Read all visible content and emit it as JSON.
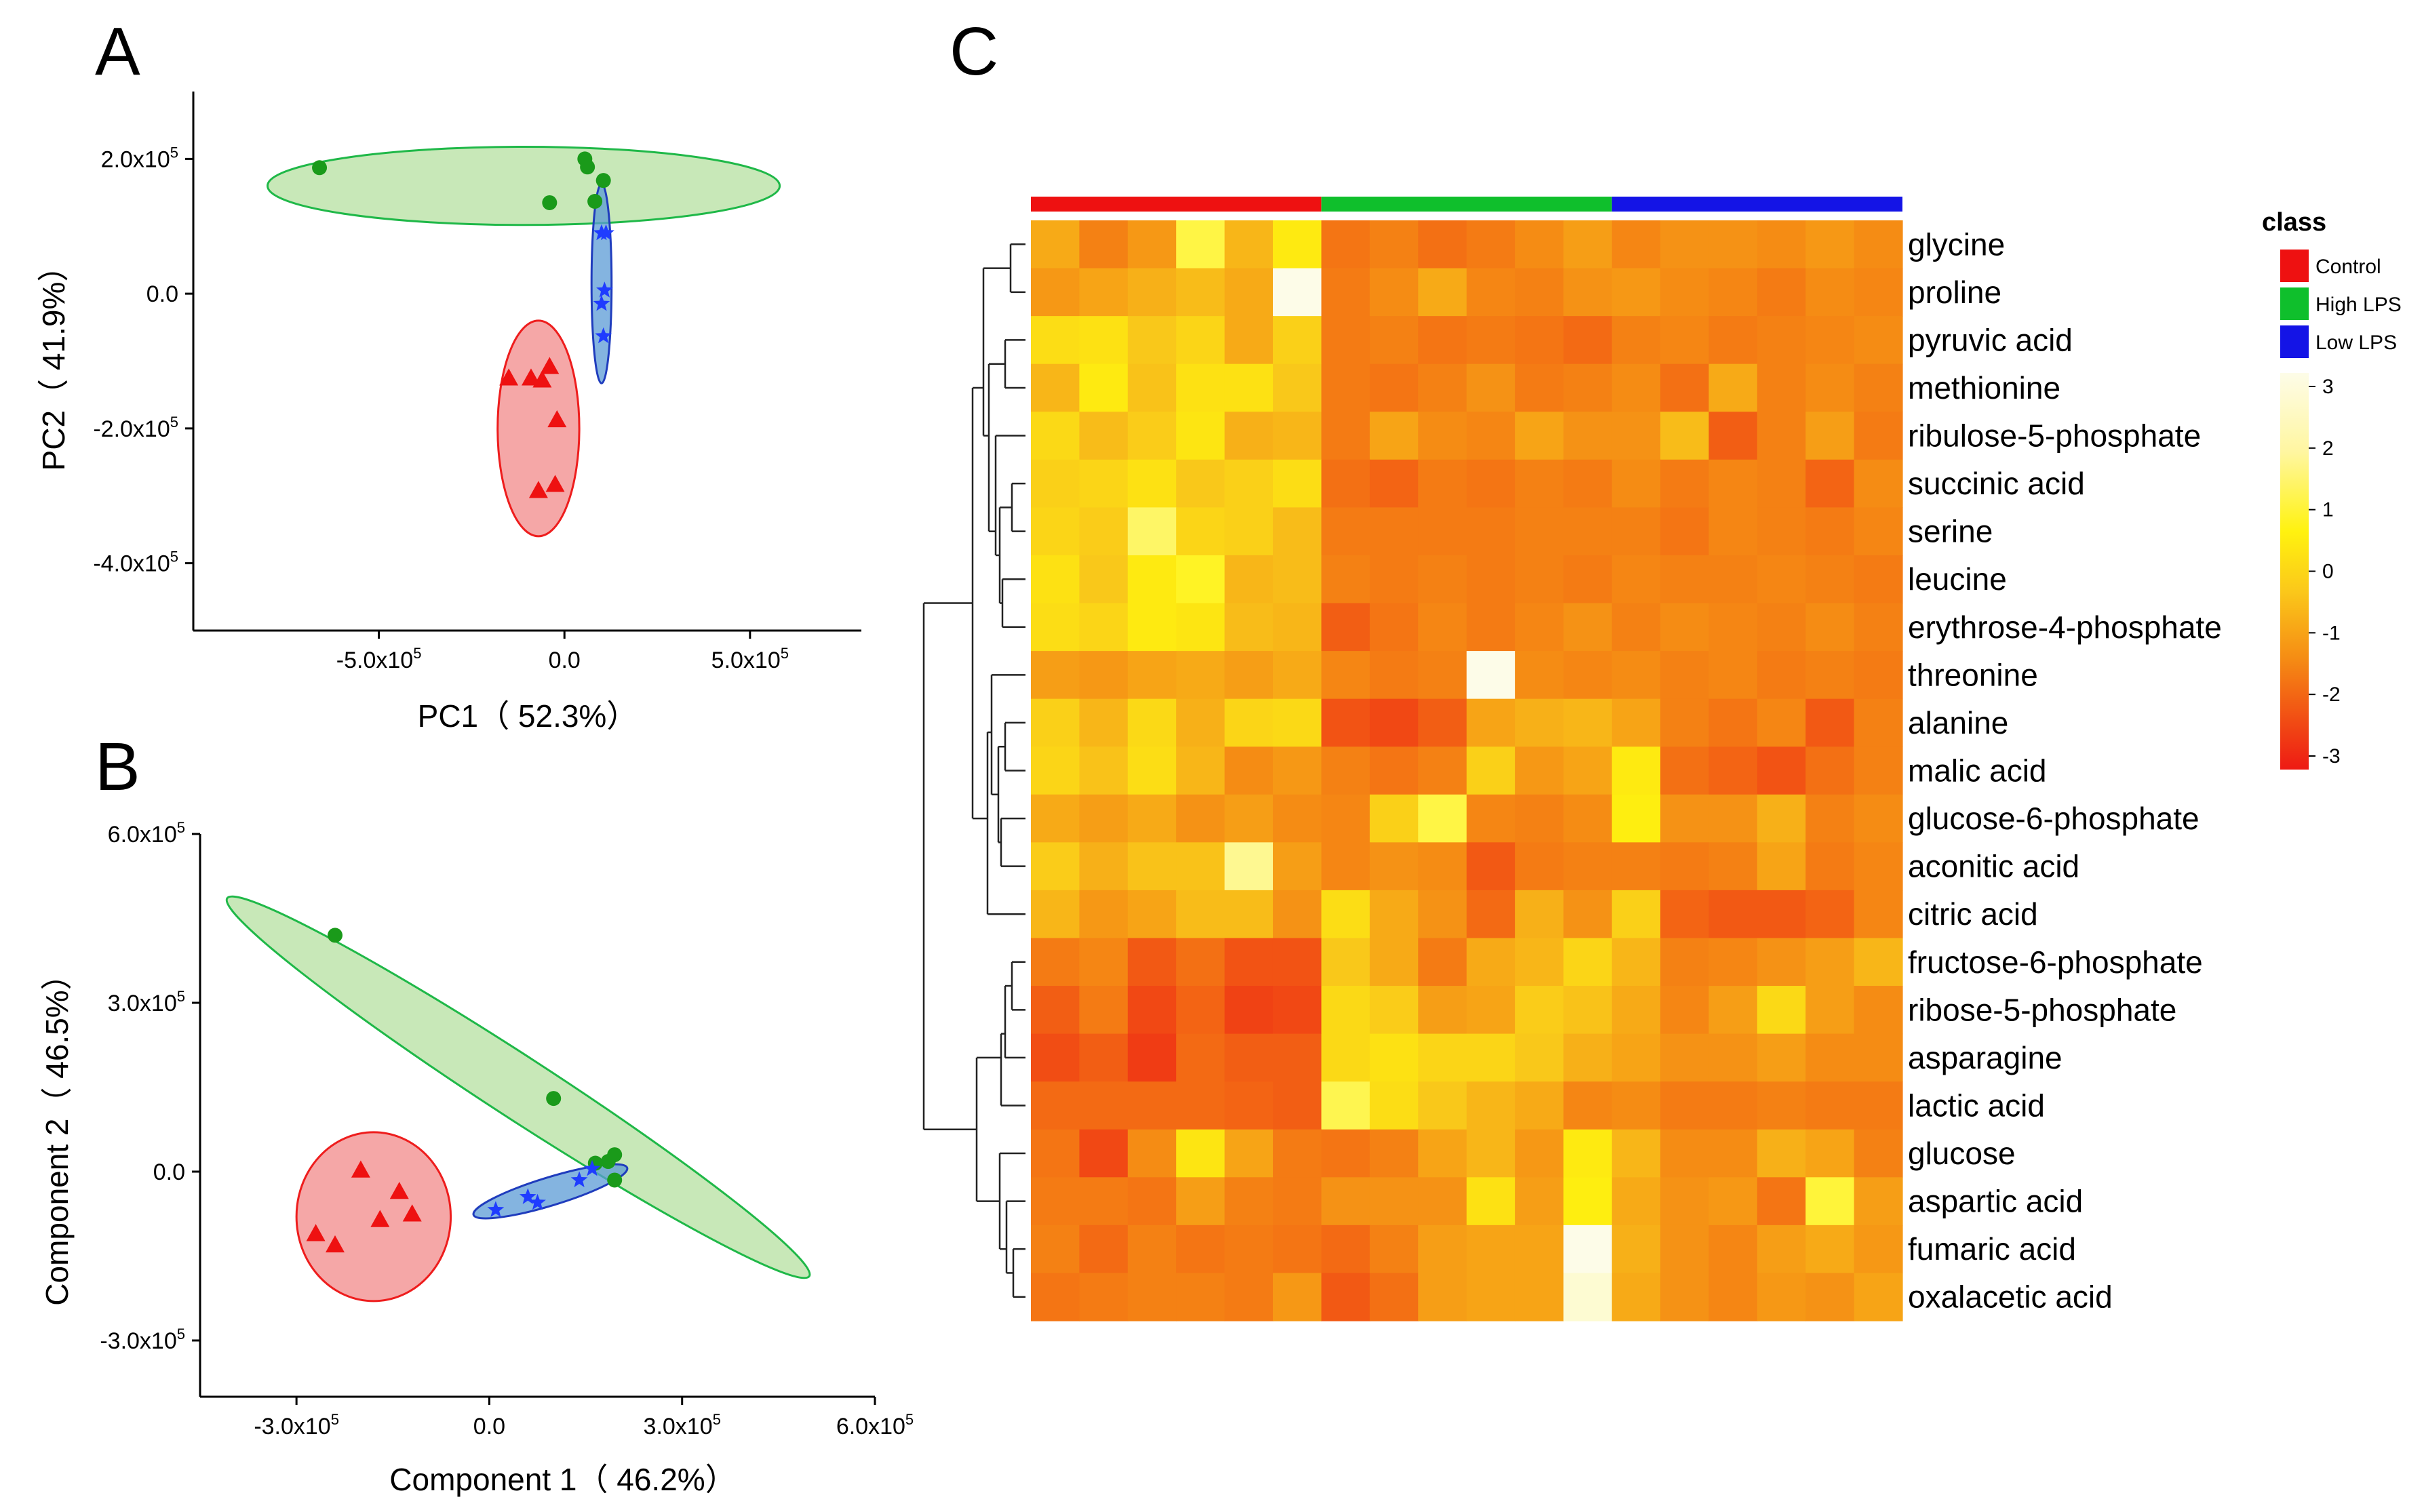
{
  "chart_data": [
    {
      "panel": "A",
      "type": "scatter",
      "xlabel": "PC1（ 52.3%）",
      "ylabel": "PC2（ 41.9%）",
      "xlim": [
        -1000000,
        800000
      ],
      "ylim": [
        -500000,
        300000
      ],
      "xticks": [
        {
          "value": -500000,
          "label": "-5.0x10",
          "exp": "5"
        },
        {
          "value": 0,
          "label": "0.0",
          "exp": ""
        },
        {
          "value": 500000,
          "label": "5.0x10",
          "exp": "5"
        }
      ],
      "yticks": [
        {
          "value": 200000,
          "label": "2.0x10",
          "exp": "5"
        },
        {
          "value": 0,
          "label": "0.0",
          "exp": ""
        },
        {
          "value": -200000,
          "label": "-2.0x10",
          "exp": "5"
        },
        {
          "value": -400000,
          "label": "-4.0x10",
          "exp": "5"
        }
      ],
      "series": [
        {
          "name": "High LPS",
          "marker": "circle",
          "color": "#1a9a1a",
          "fill": "#b6e0a0",
          "stroke": "#1fb848",
          "points": [
            [
              -660000,
              187000
            ],
            [
              55000,
              200000
            ],
            [
              62000,
              188000
            ],
            [
              105000,
              168000
            ],
            [
              82000,
              137000
            ],
            [
              -40000,
              135000
            ]
          ],
          "ellipse": {
            "cx": -110000,
            "cy": 160000,
            "rx": 690000,
            "ry": 58000,
            "angle": 0
          }
        },
        {
          "name": "Low LPS",
          "marker": "star",
          "color": "#1f3cff",
          "fill": "#5b9bd5",
          "stroke": "#1f3cbd",
          "points": [
            [
              100000,
              90000
            ],
            [
              108000,
              5000
            ],
            [
              100000,
              -15000
            ],
            [
              105000,
              -63000
            ],
            [
              112000,
              90000
            ]
          ],
          "ellipse": {
            "cx": 100000,
            "cy": 15000,
            "rx": 27000,
            "ry": 148000,
            "angle": 0
          }
        },
        {
          "name": "Control",
          "marker": "triangle",
          "color": "#ee1111",
          "fill": "#f28a8a",
          "stroke": "#ee1d1d",
          "points": [
            [
              -150000,
              -125000
            ],
            [
              -90000,
              -125000
            ],
            [
              -40000,
              -108000
            ],
            [
              -60000,
              -128000
            ],
            [
              -20000,
              -187000
            ],
            [
              -70000,
              -292000
            ],
            [
              -25000,
              -283000
            ]
          ],
          "ellipse": {
            "cx": -70000,
            "cy": -200000,
            "rx": 110000,
            "ry": 160000,
            "angle": 0
          }
        }
      ]
    },
    {
      "panel": "B",
      "type": "scatter",
      "xlabel": "Component 1（ 46.2%）",
      "ylabel": "Component 2（ 46.5%）",
      "xlim": [
        -450000,
        600000
      ],
      "ylim": [
        -400000,
        600000
      ],
      "xticks": [
        {
          "value": -300000,
          "label": "-3.0x10",
          "exp": "5"
        },
        {
          "value": 0,
          "label": "0.0",
          "exp": ""
        },
        {
          "value": 300000,
          "label": "3.0x10",
          "exp": "5"
        },
        {
          "value": 600000,
          "label": "6.0x10",
          "exp": "5"
        }
      ],
      "yticks": [
        {
          "value": 600000,
          "label": "6.0x10",
          "exp": "5"
        },
        {
          "value": 300000,
          "label": "3.0x10",
          "exp": "5"
        },
        {
          "value": 0,
          "label": "0.0",
          "exp": ""
        },
        {
          "value": -300000,
          "label": "-3.0x10",
          "exp": "5"
        }
      ],
      "series": [
        {
          "name": "High LPS",
          "marker": "circle",
          "color": "#1a9a1a",
          "fill": "#b6e0a0",
          "stroke": "#1fb848",
          "points": [
            [
              -240000,
              420000
            ],
            [
              100000,
              130000
            ],
            [
              165000,
              15000
            ],
            [
              185000,
              18000
            ],
            [
              195000,
              30000
            ],
            [
              195000,
              -15000
            ]
          ],
          "ellipse": {
            "cx": 45000,
            "cy": 150000,
            "rx": 540000,
            "ry": 55000,
            "angle": 33
          }
        },
        {
          "name": "Low LPS",
          "marker": "star",
          "color": "#1f3cff",
          "fill": "#5b9bd5",
          "stroke": "#1f3cbd",
          "points": [
            [
              10000,
              -68000
            ],
            [
              60000,
              -45000
            ],
            [
              75000,
              -55000
            ],
            [
              140000,
              -15000
            ],
            [
              160000,
              5000
            ]
          ],
          "ellipse": {
            "cx": 95000,
            "cy": -35000,
            "rx": 125000,
            "ry": 25000,
            "angle": -17
          }
        },
        {
          "name": "Control",
          "marker": "triangle",
          "color": "#ee1111",
          "fill": "#f28a8a",
          "stroke": "#ee1d1d",
          "points": [
            [
              -200000,
              3000
            ],
            [
              -140000,
              -35000
            ],
            [
              -270000,
              -110000
            ],
            [
              -240000,
              -130000
            ],
            [
              -170000,
              -85000
            ],
            [
              -120000,
              -75000
            ]
          ],
          "ellipse": {
            "cx": -180000,
            "cy": -80000,
            "rx": 120000,
            "ry": 150000,
            "angle": 0
          }
        }
      ]
    },
    {
      "panel": "C",
      "type": "heatmap",
      "legend_title": "class",
      "classes": [
        {
          "name": "Control",
          "color": "#ee1111",
          "count": 6
        },
        {
          "name": "High LPS",
          "color": "#0fbf2c",
          "count": 6
        },
        {
          "name": "Low LPS",
          "color": "#1414e6",
          "count": 6
        }
      ],
      "rows": [
        "glycine",
        "proline",
        "pyruvic acid",
        "methionine",
        "ribulose-5-phosphate",
        "succinic acid",
        "serine",
        "leucine",
        "erythrose-4-phosphate",
        "threonine",
        "alanine",
        "malic acid",
        "glucose-6-phosphate",
        "aconitic acid",
        "citric acid",
        "fructose-6-phosphate",
        "ribose-5-phosphate",
        "asparagine",
        "lactic acid",
        "glucose",
        "aspartic acid",
        "fumaric acid",
        "oxalacetic acid"
      ],
      "color_scale": {
        "min": -3,
        "max": 3,
        "ticks": [
          "3",
          "2",
          "1",
          "0",
          "-1",
          "-2",
          "-3"
        ]
      },
      "values": [
        [
          -0.5,
          -1.2,
          -0.8,
          1.5,
          -0.3,
          0.8,
          -1.4,
          -1.2,
          -1.5,
          -1.3,
          -1.0,
          -0.7,
          -1.1,
          -0.9,
          -0.9,
          -1.0,
          -0.8,
          -1.0
        ],
        [
          -0.8,
          -0.6,
          -0.4,
          -0.2,
          -0.5,
          3.5,
          -1.3,
          -1.0,
          -0.5,
          -1.1,
          -1.2,
          -0.9,
          -0.8,
          -1.0,
          -1.1,
          -1.3,
          -1.0,
          -1.1
        ],
        [
          0.5,
          0.6,
          0.0,
          0.3,
          -0.5,
          0.2,
          -1.3,
          -1.2,
          -1.4,
          -1.3,
          -1.4,
          -1.6,
          -1.2,
          -1.1,
          -1.3,
          -1.2,
          -1.1,
          -1.0
        ],
        [
          -0.3,
          0.8,
          -0.1,
          0.6,
          0.6,
          0.0,
          -1.3,
          -1.4,
          -1.2,
          -0.9,
          -1.3,
          -1.2,
          -1.0,
          -1.5,
          -0.5,
          -1.2,
          -1.0,
          -1.2
        ],
        [
          0.4,
          -0.2,
          0.1,
          0.7,
          -0.4,
          -0.3,
          -1.3,
          -0.6,
          -1.0,
          -1.1,
          -0.6,
          -0.9,
          -0.9,
          -0.2,
          -1.8,
          -1.2,
          -0.7,
          -1.3
        ],
        [
          0.2,
          0.3,
          0.6,
          0.0,
          0.2,
          0.5,
          -1.5,
          -1.7,
          -1.3,
          -1.4,
          -1.2,
          -1.3,
          -1.0,
          -1.3,
          -1.1,
          -1.2,
          -1.7,
          -1.0
        ],
        [
          0.3,
          0.1,
          1.8,
          0.3,
          0.2,
          -0.2,
          -1.3,
          -1.3,
          -1.3,
          -1.3,
          -1.2,
          -1.2,
          -1.2,
          -1.4,
          -1.1,
          -1.2,
          -1.3,
          -1.1
        ],
        [
          0.6,
          0.0,
          0.8,
          1.2,
          -0.3,
          -0.2,
          -1.2,
          -1.3,
          -1.2,
          -1.3,
          -1.2,
          -1.3,
          -1.1,
          -1.2,
          -1.2,
          -1.1,
          -1.2,
          -1.3
        ],
        [
          0.5,
          0.3,
          0.8,
          0.7,
          -0.2,
          -0.3,
          -1.8,
          -1.4,
          -1.1,
          -1.3,
          -1.1,
          -0.9,
          -1.2,
          -1.0,
          -1.1,
          -1.2,
          -1.0,
          -1.2
        ],
        [
          -0.7,
          -0.8,
          -0.6,
          -0.5,
          -0.7,
          -0.5,
          -1.1,
          -1.3,
          -1.2,
          3.8,
          -1.0,
          -1.1,
          -1.0,
          -1.2,
          -1.1,
          -1.3,
          -1.2,
          -1.3
        ],
        [
          0.2,
          -0.3,
          0.4,
          -0.4,
          0.3,
          0.4,
          -2.0,
          -2.2,
          -1.8,
          -0.6,
          -0.4,
          -0.3,
          -0.6,
          -1.2,
          -1.4,
          -1.1,
          -1.9,
          -1.2
        ],
        [
          0.3,
          -0.1,
          0.5,
          -0.3,
          -1.0,
          -0.8,
          -1.2,
          -1.4,
          -1.2,
          0.2,
          -0.8,
          -0.6,
          0.8,
          -1.5,
          -1.7,
          -2.0,
          -1.5,
          -1.2
        ],
        [
          -0.5,
          -0.7,
          -0.5,
          -0.9,
          -0.7,
          -1.0,
          -1.1,
          0.2,
          1.5,
          -1.1,
          -1.2,
          -1.0,
          0.9,
          -0.9,
          -0.9,
          -0.4,
          -1.2,
          -1.0
        ],
        [
          0.1,
          -0.4,
          -0.1,
          -0.1,
          2.2,
          -0.7,
          -1.1,
          -0.9,
          -1.0,
          -1.9,
          -1.3,
          -1.2,
          -1.2,
          -1.3,
          -1.2,
          -0.6,
          -1.3,
          -1.1
        ],
        [
          -0.3,
          -0.8,
          -0.6,
          -0.2,
          -0.2,
          -0.9,
          0.5,
          -0.5,
          -0.9,
          -1.6,
          -0.4,
          -0.9,
          0.2,
          -1.7,
          -1.9,
          -1.9,
          -1.7,
          -1.1
        ],
        [
          -1.3,
          -1.1,
          -1.9,
          -1.5,
          -2.0,
          -2.0,
          0.0,
          -0.5,
          -1.3,
          -0.5,
          -0.3,
          0.3,
          -0.3,
          -1.2,
          -1.1,
          -0.9,
          -0.7,
          -0.3
        ],
        [
          -1.8,
          -1.3,
          -2.2,
          -1.7,
          -2.3,
          -2.2,
          0.4,
          0.1,
          -0.7,
          -0.6,
          0.1,
          -0.1,
          -0.5,
          -1.1,
          -0.7,
          0.4,
          -0.7,
          -1.0
        ],
        [
          -2.1,
          -1.8,
          -2.4,
          -1.6,
          -1.8,
          -1.8,
          0.4,
          0.6,
          0.3,
          0.3,
          0.0,
          -0.4,
          -0.6,
          -0.9,
          -0.9,
          -0.7,
          -1.0,
          -1.0
        ],
        [
          -1.6,
          -1.6,
          -1.6,
          -1.6,
          -1.7,
          -1.8,
          1.6,
          0.5,
          0.0,
          -0.3,
          -0.5,
          -1.1,
          -1.0,
          -1.3,
          -1.3,
          -1.2,
          -1.3,
          -1.3
        ],
        [
          -1.4,
          -2.2,
          -1.0,
          0.7,
          -0.6,
          -1.3,
          -1.4,
          -1.2,
          -0.6,
          -0.3,
          -0.8,
          0.8,
          -0.3,
          -1.0,
          -1.0,
          -0.4,
          -0.6,
          -1.2
        ],
        [
          -1.3,
          -1.3,
          -1.4,
          -0.7,
          -1.2,
          -1.3,
          -0.9,
          -0.9,
          -0.9,
          0.6,
          -0.7,
          0.9,
          -0.5,
          -0.9,
          -0.8,
          -1.4,
          1.4,
          -0.7
        ],
        [
          -1.2,
          -1.6,
          -1.2,
          -1.4,
          -1.3,
          -1.4,
          -1.6,
          -1.2,
          -0.7,
          -0.6,
          -0.6,
          3.3,
          -0.4,
          -0.9,
          -1.1,
          -0.7,
          -0.5,
          -0.8
        ],
        [
          -1.4,
          -1.3,
          -1.2,
          -1.2,
          -1.3,
          -0.8,
          -1.9,
          -1.5,
          -0.7,
          -0.6,
          -0.6,
          2.8,
          -0.5,
          -0.9,
          -1.1,
          -0.8,
          -0.9,
          -0.6
        ]
      ]
    }
  ],
  "palette": {
    "heat_low": "#ee1a14",
    "heat_mid_low": "#f58c14",
    "heat_mid": "#f9c81a",
    "heat_mid_high": "#fff20f",
    "heat_high": "#fdfce8"
  }
}
